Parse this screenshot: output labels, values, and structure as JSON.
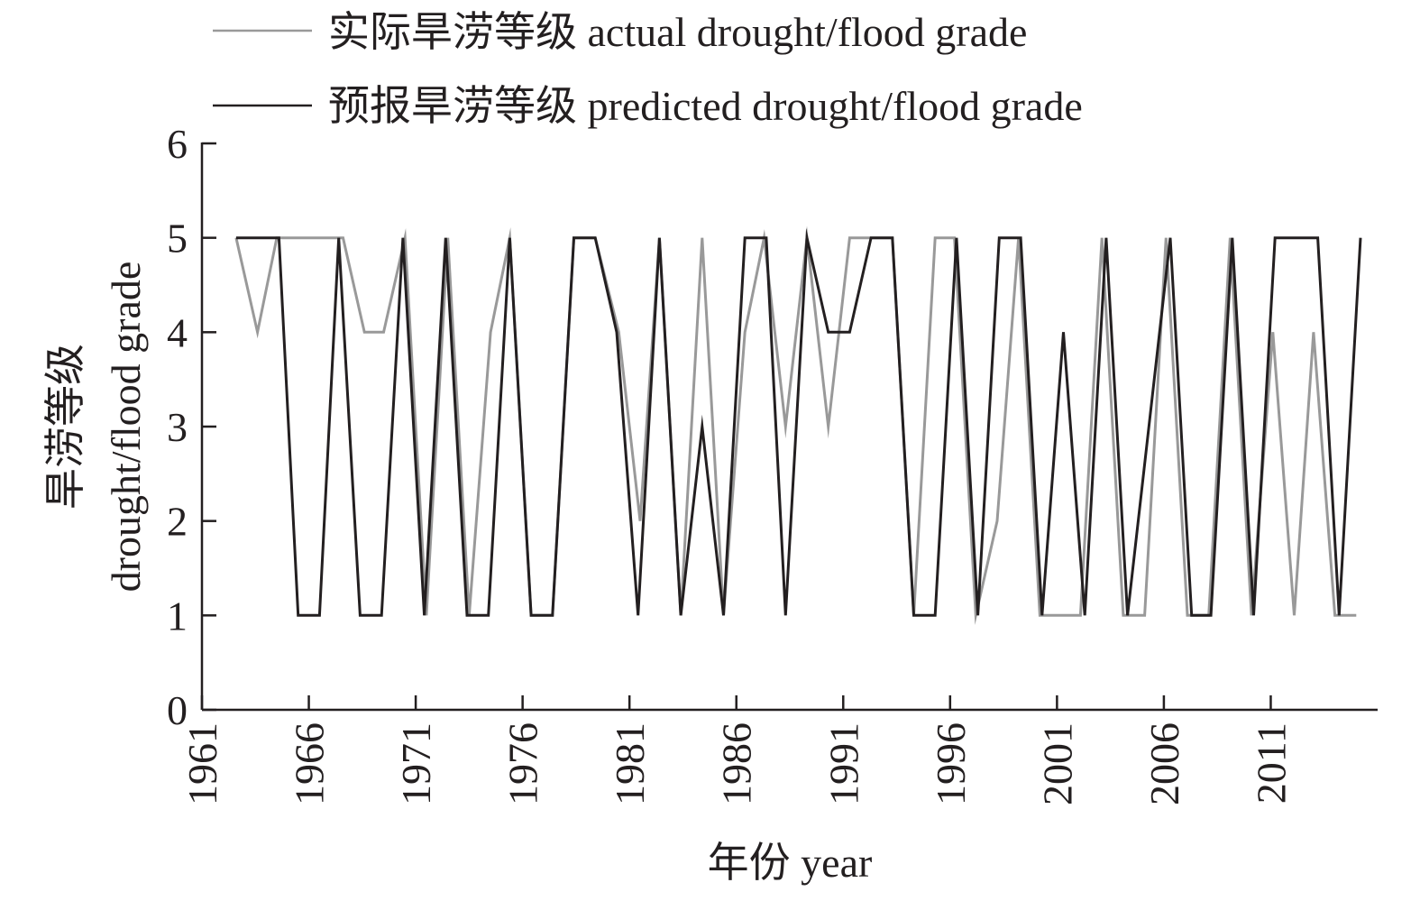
{
  "chart_data": {
    "type": "line",
    "xlabel": "年份 year",
    "ylabel": [
      "旱涝等级",
      "drought/flood grade"
    ],
    "x_tick_labels": [
      "1961",
      "1966",
      "1971",
      "1976",
      "1981",
      "1986",
      "1991",
      "1996",
      "2001",
      "2006",
      "2011"
    ],
    "x_ticks": [
      1961,
      1966,
      1971,
      1976,
      1981,
      1986,
      1991,
      1996,
      2001,
      2006,
      2011
    ],
    "x_range": [
      1961,
      2016
    ],
    "y_ticks": [
      0,
      1,
      2,
      3,
      4,
      5,
      6
    ],
    "y_tick_labels": [
      "0",
      "1",
      "2",
      "3",
      "4",
      "5",
      "6"
    ],
    "ylim": [
      0,
      6
    ],
    "legend_position": "top",
    "series": [
      {
        "name": "实际旱涝等级 actual drought/flood grade",
        "color": "#999999",
        "x": [
          1962.6,
          1963.6,
          1964.5,
          1966.6,
          1967.6,
          1968.6,
          1969.5,
          1970.5,
          1971.5,
          1972.5,
          1973.5,
          1974.5,
          1975.4,
          1976.4,
          1977.4,
          1978.4,
          1979.4,
          1980.5,
          1981.5,
          1982.4,
          1983.4,
          1984.4,
          1985.4,
          1986.4,
          1987.3,
          1988.3,
          1989.3,
          1990.3,
          1991.3,
          1992.3,
          1993.3,
          1994.3,
          1995.3,
          1996.2,
          1997.2,
          1998.2,
          1999.2,
          2000.2,
          2001.1,
          2002.1,
          2003.1,
          2004.1,
          2005.1,
          2006.1,
          2007.1,
          2008.1,
          2009.1,
          2010.1,
          2011.1,
          2012.1,
          2013.0,
          2014.0,
          2015.0
        ],
        "y": [
          5,
          4,
          5,
          5,
          5,
          4,
          4,
          5,
          1,
          5,
          1,
          4,
          5,
          1,
          1,
          5,
          5,
          4,
          2,
          5,
          1,
          5,
          1,
          4,
          5,
          3,
          5,
          3,
          5,
          5,
          5,
          1,
          5,
          5,
          1,
          2,
          5,
          1,
          1,
          1,
          5,
          1,
          1,
          5,
          1,
          1,
          5,
          1,
          4,
          1,
          4,
          1,
          1
        ]
      },
      {
        "name": "预报旱涝等级 predicted drought/flood grade",
        "color": "#231f20",
        "x": [
          1962.6,
          1963.6,
          1964.6,
          1965.5,
          1966.5,
          1967.4,
          1968.4,
          1969.4,
          1970.4,
          1971.4,
          1972.4,
          1973.4,
          1974.4,
          1975.4,
          1976.4,
          1977.4,
          1978.4,
          1979.4,
          1980.4,
          1981.4,
          1982.4,
          1983.4,
          1984.4,
          1985.4,
          1986.4,
          1987.4,
          1988.3,
          1989.3,
          1990.3,
          1991.3,
          1992.3,
          1993.3,
          1994.3,
          1995.3,
          1996.3,
          1997.3,
          1998.3,
          1999.3,
          2000.3,
          2001.3,
          2002.3,
          2003.3,
          2004.3,
          2005.3,
          2006.3,
          2007.3,
          2008.2,
          2009.2,
          2010.2,
          2011.2,
          2012.2,
          2013.2,
          2014.2,
          2015.2
        ],
        "y": [
          5,
          5,
          5,
          1,
          1,
          5,
          1,
          1,
          5,
          1,
          5,
          1,
          1,
          5,
          1,
          1,
          5,
          5,
          4,
          1,
          5,
          1,
          3,
          1,
          5,
          5,
          1,
          5,
          4,
          4,
          5,
          5,
          1,
          1,
          5,
          1,
          5,
          5,
          1,
          4,
          1,
          5,
          1,
          3,
          5,
          1,
          1,
          5,
          1,
          5,
          5,
          5,
          1,
          5
        ]
      }
    ]
  }
}
